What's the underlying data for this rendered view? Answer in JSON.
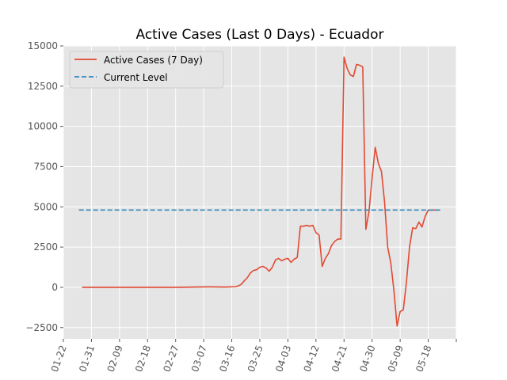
{
  "chart_data": {
    "type": "line",
    "title": "Active Cases (Last 0 Days) - Ecuador",
    "xlabel": "",
    "ylabel": "",
    "xlim": [
      "2020-01-22",
      "2020-05-27"
    ],
    "ylim": [
      -3200,
      15000
    ],
    "x_tick_labels": [
      "01-22",
      "01-31",
      "02-09",
      "02-18",
      "02-27",
      "03-07",
      "03-16",
      "03-25",
      "04-03",
      "04-12",
      "04-21",
      "04-30",
      "05-09",
      "05-18"
    ],
    "y_tick_values": [
      -2500,
      0,
      2500,
      5000,
      7500,
      10000,
      12500,
      15000
    ],
    "y_tick_labels": [
      "−2500",
      "0",
      "2500",
      "5000",
      "7500",
      "10000",
      "12500",
      "15000"
    ],
    "grid": true,
    "legend_position": "top-left",
    "series": [
      {
        "name": "Active Cases (7 Day)",
        "color": "#e24a33",
        "style": "solid",
        "x": [
          "2020-01-28",
          "2020-02-07",
          "2020-02-17",
          "2020-02-27",
          "2020-03-04",
          "2020-03-09",
          "2020-03-14",
          "2020-03-17",
          "2020-03-18",
          "2020-03-19",
          "2020-03-20",
          "2020-03-21",
          "2020-03-22",
          "2020-03-23",
          "2020-03-24",
          "2020-03-25",
          "2020-03-26",
          "2020-03-27",
          "2020-03-28",
          "2020-03-29",
          "2020-03-30",
          "2020-03-31",
          "2020-04-01",
          "2020-04-02",
          "2020-04-03",
          "2020-04-04",
          "2020-04-05",
          "2020-04-06",
          "2020-04-07",
          "2020-04-08",
          "2020-04-09",
          "2020-04-10",
          "2020-04-11",
          "2020-04-12",
          "2020-04-13",
          "2020-04-14",
          "2020-04-15",
          "2020-04-16",
          "2020-04-17",
          "2020-04-18",
          "2020-04-19",
          "2020-04-20",
          "2020-04-21",
          "2020-04-22",
          "2020-04-23",
          "2020-04-24",
          "2020-04-25",
          "2020-04-26",
          "2020-04-27",
          "2020-04-28",
          "2020-04-29",
          "2020-04-30",
          "2020-05-01",
          "2020-05-02",
          "2020-05-03",
          "2020-05-04",
          "2020-05-05",
          "2020-05-06",
          "2020-05-07",
          "2020-05-08",
          "2020-05-09",
          "2020-05-10",
          "2020-05-11",
          "2020-05-12",
          "2020-05-13",
          "2020-05-14",
          "2020-05-15",
          "2020-05-16",
          "2020-05-17",
          "2020-05-18",
          "2020-05-19",
          "2020-05-20",
          "2020-05-21"
        ],
        "y": [
          0,
          0,
          0,
          0,
          20,
          30,
          20,
          40,
          80,
          180,
          400,
          600,
          900,
          1050,
          1100,
          1250,
          1300,
          1200,
          1000,
          1250,
          1700,
          1800,
          1650,
          1750,
          1800,
          1550,
          1750,
          1850,
          3800,
          3800,
          3850,
          3800,
          3850,
          3400,
          3250,
          1300,
          1800,
          2100,
          2600,
          2850,
          3000,
          3000,
          14300,
          13600,
          13200,
          13100,
          13850,
          13800,
          13700,
          3600,
          4700,
          6800,
          8700,
          7700,
          7200,
          5300,
          2500,
          1500,
          -200,
          -2400,
          -1500,
          -1400,
          300,
          2500,
          3700,
          3650,
          4050,
          3750,
          4400,
          4800,
          4800,
          4800,
          4800
        ]
      },
      {
        "name": "Current Level",
        "color": "#348abd",
        "style": "dashed",
        "x": [
          "2020-01-27",
          "2020-05-22"
        ],
        "y": [
          4800,
          4800
        ]
      }
    ]
  }
}
